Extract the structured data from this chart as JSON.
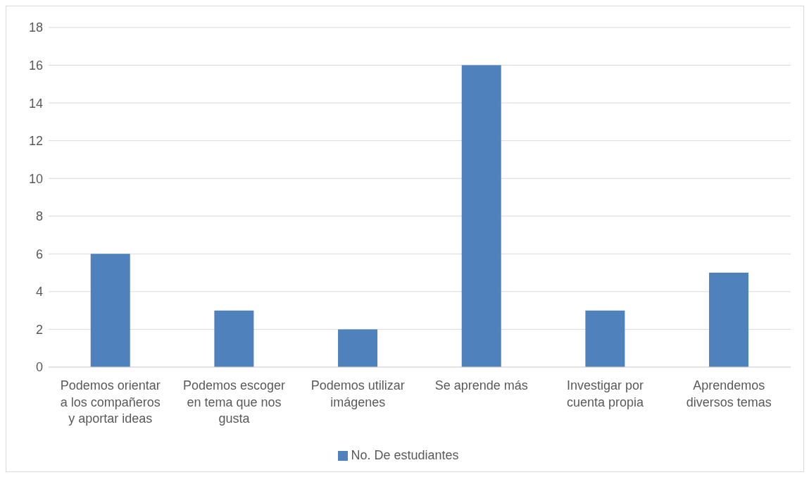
{
  "chart_data": {
    "type": "bar",
    "categories": [
      "Podemos orientar a los compañeros y aportar ideas",
      "Podemos escoger en tema que nos gusta",
      "Podemos utilizar imágenes",
      "Se aprende más",
      "Investigar por cuenta propia",
      "Aprendemos diversos temas"
    ],
    "series": [
      {
        "name": "No. De estudiantes",
        "color": "#4f81bd",
        "values": [
          6,
          3,
          2,
          16,
          3,
          5
        ]
      }
    ],
    "ylim": [
      0,
      18
    ],
    "yticks": [
      0,
      2,
      4,
      6,
      8,
      10,
      12,
      14,
      16,
      18
    ],
    "grid": "y",
    "legend": "bottom"
  }
}
